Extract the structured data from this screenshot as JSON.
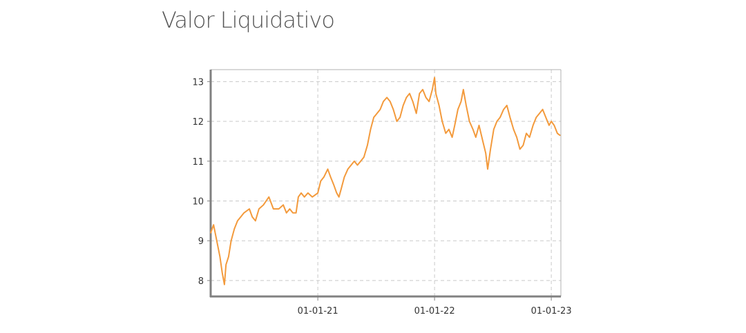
{
  "page": {
    "title": "Valor Liquidativo"
  },
  "colors": {
    "line": "#f39a3c",
    "grid": "#c8c8c8",
    "axis": "#808080"
  },
  "chart_data": {
    "type": "line",
    "title": "",
    "xlabel": "",
    "ylabel": "",
    "grid": true,
    "legend": "none",
    "xlim": [
      "2020-02-01",
      "2023-01-31"
    ],
    "ylim": [
      7.6,
      13.3
    ],
    "y_ticks": [
      8,
      9,
      10,
      11,
      12,
      13
    ],
    "x_ticks": [
      {
        "date": "2021-01-01",
        "label": "01-01-21"
      },
      {
        "date": "2022-01-01",
        "label": "01-01-22"
      },
      {
        "date": "2023-01-01",
        "label": "01-01-23"
      }
    ],
    "series": [
      {
        "x": [
          "2020-02-01",
          "2020-02-10",
          "2020-02-20",
          "2020-03-01",
          "2020-03-08",
          "2020-03-15",
          "2020-03-20",
          "2020-03-28",
          "2020-04-05",
          "2020-04-15",
          "2020-04-25",
          "2020-05-05",
          "2020-05-15",
          "2020-06-01",
          "2020-06-10",
          "2020-06-20",
          "2020-07-01",
          "2020-07-15",
          "2020-08-01",
          "2020-08-15",
          "2020-09-01",
          "2020-09-15",
          "2020-09-25",
          "2020-10-05",
          "2020-10-15",
          "2020-10-25",
          "2020-11-01",
          "2020-11-10",
          "2020-11-20",
          "2020-12-01",
          "2020-12-15",
          "2021-01-01",
          "2021-01-10",
          "2021-01-20",
          "2021-02-01",
          "2021-02-10",
          "2021-02-20",
          "2021-03-01",
          "2021-03-08",
          "2021-03-15",
          "2021-03-25",
          "2021-04-05",
          "2021-04-15",
          "2021-04-25",
          "2021-05-05",
          "2021-05-15",
          "2021-05-25",
          "2021-06-05",
          "2021-06-15",
          "2021-06-25",
          "2021-07-05",
          "2021-07-15",
          "2021-07-25",
          "2021-08-05",
          "2021-08-15",
          "2021-08-25",
          "2021-09-05",
          "2021-09-15",
          "2021-09-25",
          "2021-10-05",
          "2021-10-15",
          "2021-10-25",
          "2021-11-05",
          "2021-11-15",
          "2021-11-25",
          "2021-12-05",
          "2021-12-15",
          "2021-12-25",
          "2022-01-01",
          "2022-01-05",
          "2022-01-15",
          "2022-01-25",
          "2022-02-05",
          "2022-02-15",
          "2022-02-25",
          "2022-03-05",
          "2022-03-15",
          "2022-03-25",
          "2022-04-01",
          "2022-04-10",
          "2022-04-20",
          "2022-05-01",
          "2022-05-10",
          "2022-05-20",
          "2022-06-01",
          "2022-06-10",
          "2022-06-16",
          "2022-06-25",
          "2022-07-05",
          "2022-07-15",
          "2022-07-25",
          "2022-08-05",
          "2022-08-15",
          "2022-08-25",
          "2022-09-05",
          "2022-09-15",
          "2022-09-25",
          "2022-10-05",
          "2022-10-15",
          "2022-10-25",
          "2022-11-05",
          "2022-11-15",
          "2022-11-25",
          "2022-12-05",
          "2022-12-15",
          "2022-12-25",
          "2023-01-01",
          "2023-01-10",
          "2023-01-20",
          "2023-01-28"
        ],
        "y": [
          9.2,
          9.4,
          9.0,
          8.6,
          8.2,
          7.9,
          8.4,
          8.6,
          9.0,
          9.3,
          9.5,
          9.6,
          9.7,
          9.8,
          9.6,
          9.5,
          9.8,
          9.9,
          10.1,
          9.8,
          9.8,
          9.9,
          9.7,
          9.8,
          9.7,
          9.7,
          10.1,
          10.2,
          10.1,
          10.2,
          10.1,
          10.2,
          10.5,
          10.6,
          10.8,
          10.6,
          10.4,
          10.2,
          10.1,
          10.3,
          10.6,
          10.8,
          10.9,
          11.0,
          10.9,
          11.0,
          11.1,
          11.4,
          11.8,
          12.1,
          12.2,
          12.3,
          12.5,
          12.6,
          12.5,
          12.3,
          12.0,
          12.1,
          12.4,
          12.6,
          12.7,
          12.5,
          12.2,
          12.7,
          12.8,
          12.6,
          12.5,
          12.8,
          13.1,
          12.7,
          12.4,
          12.0,
          11.7,
          11.8,
          11.6,
          11.9,
          12.3,
          12.5,
          12.8,
          12.4,
          12.0,
          11.8,
          11.6,
          11.9,
          11.5,
          11.2,
          10.8,
          11.3,
          11.8,
          12.0,
          12.1,
          12.3,
          12.4,
          12.1,
          11.8,
          11.6,
          11.3,
          11.4,
          11.7,
          11.6,
          11.9,
          12.1,
          12.2,
          12.3,
          12.1,
          11.9,
          12.0,
          11.9,
          11.7,
          11.65
        ]
      }
    ]
  }
}
